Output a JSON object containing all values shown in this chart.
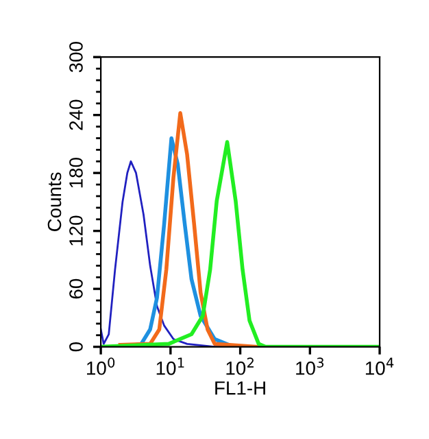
{
  "chart_data": {
    "type": "line",
    "xlabel": "FL1-H",
    "ylabel": "Counts",
    "log": "x",
    "xlim": [
      1,
      10000
    ],
    "ylim": [
      0,
      300
    ],
    "xticks": [
      {
        "value": 1,
        "label": "10$^{0}$"
      },
      {
        "value": 10,
        "label": "10$^{1}$"
      },
      {
        "value": 100,
        "label": "10$^{2}$"
      },
      {
        "value": 1000,
        "label": "10$^{3}$"
      },
      {
        "value": 10000,
        "label": "10$^{4}$"
      }
    ],
    "yticks": [
      0,
      60,
      120,
      180,
      240,
      300
    ],
    "grid": false,
    "legend": false,
    "series": [
      {
        "color": "#2020c0",
        "x": [
          1,
          1.1,
          1.3,
          1.6,
          2.05,
          2.4,
          2.7,
          3.2,
          4.1,
          5.1,
          6.4,
          8.1,
          11,
          17.3,
          43,
          10000
        ],
        "values": [
          18,
          3,
          13,
          80,
          150,
          180,
          192,
          180,
          137,
          84,
          42,
          22,
          8,
          3,
          0,
          0
        ]
      },
      {
        "color": "#1e90e0",
        "x": [
          2,
          3.8,
          5.1,
          6.4,
          8.1,
          10.3,
          12.7,
          16,
          20,
          27,
          43,
          80
        ],
        "values": [
          0,
          3,
          18,
          51,
          127,
          216,
          189,
          127,
          70,
          32,
          8,
          0
        ]
      },
      {
        "color": "#f26a1b",
        "x": [
          1.9,
          5.1,
          6.9,
          8.7,
          11,
          13.8,
          17.3,
          21.8,
          27,
          34,
          43,
          170
        ],
        "values": [
          2,
          3,
          18,
          80,
          175,
          242,
          199,
          127,
          56,
          18,
          3,
          0
        ]
      },
      {
        "color": "#22ee22",
        "x": [
          1,
          9.4,
          20,
          29,
          37,
          46,
          65,
          86,
          108,
          136,
          184,
          230,
          10000
        ],
        "values": [
          0,
          3,
          13,
          32,
          80,
          151,
          212,
          151,
          80,
          27,
          3,
          0,
          0
        ]
      }
    ]
  }
}
